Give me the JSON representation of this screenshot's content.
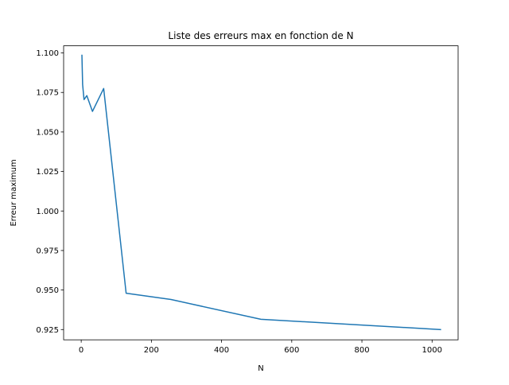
{
  "chart_data": {
    "type": "line",
    "title": "Liste des erreurs max en fonction de N",
    "xlabel": "N",
    "ylabel": "Erreur maximum",
    "xlim": [
      -50.15,
      1074.15
    ],
    "ylim": [
      0.9185,
      1.1045
    ],
    "grid": false,
    "x_ticks": [
      0,
      200,
      400,
      600,
      800,
      1000
    ],
    "x_tick_labels": [
      "0",
      "200",
      "400",
      "600",
      "800",
      "1000"
    ],
    "y_ticks": [
      0.925,
      0.95,
      0.975,
      1.0,
      1.025,
      1.05,
      1.075,
      1.1
    ],
    "y_tick_labels": [
      "0.925",
      "0.950",
      "0.975",
      "1.000",
      "1.025",
      "1.050",
      "1.075",
      "1.100"
    ],
    "series": [
      {
        "color": "#1f77b4",
        "x": [
          2,
          4,
          8,
          16,
          32,
          64,
          128,
          256,
          512,
          1024
        ],
        "y": [
          1.0985,
          1.08,
          1.0705,
          1.073,
          1.063,
          1.0775,
          0.948,
          0.944,
          0.9315,
          0.925
        ]
      }
    ]
  }
}
